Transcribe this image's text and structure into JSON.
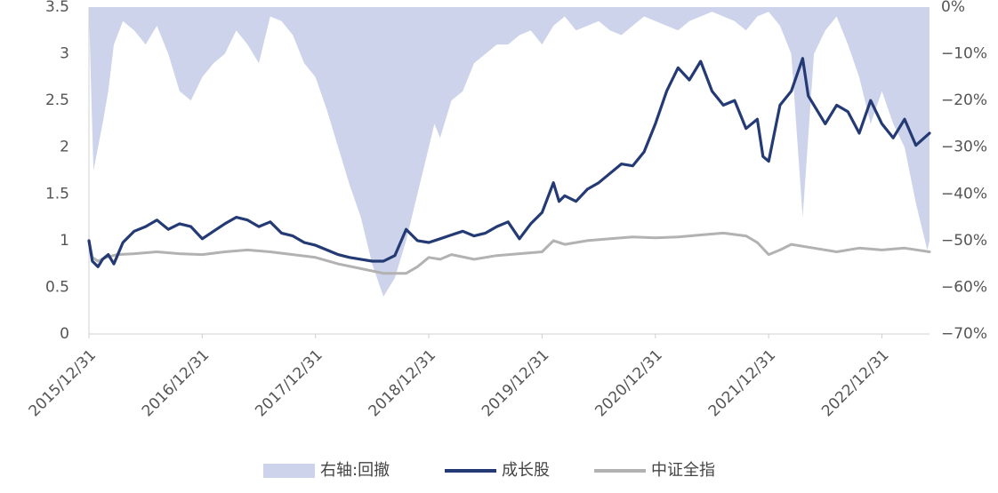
{
  "chart_data": {
    "type": "line",
    "title": "",
    "left_axis": {
      "ylim": [
        0,
        3.5
      ],
      "tick_labels": [
        "0",
        "0.5",
        "1",
        "1.5",
        "2",
        "2.5",
        "3",
        "3.5"
      ]
    },
    "right_axis": {
      "ylim": [
        -70,
        0
      ],
      "tick_labels": [
        "-70%",
        "-60%",
        "-50%",
        "-40%",
        "-30%",
        "-20%",
        "-10%",
        "0%"
      ]
    },
    "x_tick_labels": [
      "2015/12/31",
      "2016/12/31",
      "2017/12/31",
      "2018/12/31",
      "2019/12/31",
      "2020/12/31",
      "2021/12/31",
      "2022/12/31"
    ],
    "legend": [
      "右轴:回撤",
      "成长股",
      "中证全指"
    ],
    "colors": {
      "drawdown": "#ccd3ea",
      "growth": "#243a74",
      "index": "#b2b2b2"
    },
    "series": [
      {
        "name": "右轴:回撤",
        "axis": "right",
        "type": "area",
        "x": [
          2016.0,
          2016.02,
          2016.04,
          2016.08,
          2016.12,
          2016.17,
          2016.22,
          2016.3,
          2016.4,
          2016.5,
          2016.6,
          2016.7,
          2016.8,
          2016.9,
          2017.0,
          2017.1,
          2017.2,
          2017.3,
          2017.4,
          2017.5,
          2017.6,
          2017.7,
          2017.8,
          2017.9,
          2018.0,
          2018.1,
          2018.2,
          2018.3,
          2018.4,
          2018.5,
          2018.6,
          2018.7,
          2018.8,
          2018.9,
          2018.95,
          2019.0,
          2019.05,
          2019.1,
          2019.2,
          2019.3,
          2019.4,
          2019.5,
          2019.6,
          2019.7,
          2019.8,
          2019.9,
          2020.0,
          2020.1,
          2020.2,
          2020.3,
          2020.4,
          2020.5,
          2020.6,
          2020.7,
          2020.8,
          2020.9,
          2021.0,
          2021.1,
          2021.2,
          2021.3,
          2021.4,
          2021.5,
          2021.6,
          2021.7,
          2021.8,
          2021.9,
          2022.0,
          2022.1,
          2022.2,
          2022.3,
          2022.4,
          2022.5,
          2022.6,
          2022.7,
          2022.8,
          2022.9,
          2023.0,
          2023.1,
          2023.2,
          2023.3,
          2023.4,
          2023.42
        ],
        "values": [
          0,
          -18,
          -35,
          -30,
          -25,
          -18,
          -8,
          -3,
          -5,
          -8,
          -4,
          -10,
          -18,
          -20,
          -15,
          -12,
          -10,
          -5,
          -8,
          -12,
          -2,
          -3,
          -6,
          -12,
          -15,
          -22,
          -30,
          -38,
          -45,
          -55,
          -62,
          -58,
          -50,
          -40,
          -35,
          -30,
          -25,
          -28,
          -20,
          -18,
          -12,
          -10,
          -8,
          -8,
          -6,
          -5,
          -8,
          -4,
          -2,
          -5,
          -4,
          -3,
          -5,
          -6,
          -4,
          -2,
          -3,
          -4,
          -5,
          -3,
          -2,
          -1,
          -2,
          -3,
          -5,
          -2,
          -1,
          -4,
          -10,
          -45,
          -10,
          -5,
          -2,
          -8,
          -15,
          -25,
          -18,
          -25,
          -30,
          -42,
          -52,
          -50
        ]
      },
      {
        "name": "成长股",
        "axis": "left",
        "x": [
          2016.0,
          2016.03,
          2016.08,
          2016.12,
          2016.17,
          2016.22,
          2016.3,
          2016.4,
          2016.5,
          2016.6,
          2016.7,
          2016.8,
          2016.9,
          2017.0,
          2017.1,
          2017.2,
          2017.3,
          2017.4,
          2017.5,
          2017.6,
          2017.7,
          2017.8,
          2017.9,
          2018.0,
          2018.1,
          2018.2,
          2018.3,
          2018.4,
          2018.5,
          2018.6,
          2018.7,
          2018.8,
          2018.9,
          2019.0,
          2019.1,
          2019.2,
          2019.3,
          2019.4,
          2019.5,
          2019.6,
          2019.7,
          2019.8,
          2019.9,
          2020.0,
          2020.1,
          2020.15,
          2020.2,
          2020.3,
          2020.4,
          2020.5,
          2020.6,
          2020.7,
          2020.8,
          2020.9,
          2021.0,
          2021.1,
          2021.2,
          2021.3,
          2021.4,
          2021.5,
          2021.6,
          2021.7,
          2021.8,
          2021.9,
          2021.95,
          2022.0,
          2022.1,
          2022.2,
          2022.3,
          2022.35,
          2022.4,
          2022.5,
          2022.6,
          2022.7,
          2022.8,
          2022.9,
          2023.0,
          2023.1,
          2023.2,
          2023.3,
          2023.42
        ],
        "values": [
          1.0,
          0.78,
          0.72,
          0.8,
          0.85,
          0.75,
          0.98,
          1.1,
          1.15,
          1.22,
          1.12,
          1.18,
          1.15,
          1.02,
          1.1,
          1.18,
          1.25,
          1.22,
          1.15,
          1.2,
          1.08,
          1.05,
          0.98,
          0.95,
          0.9,
          0.85,
          0.82,
          0.8,
          0.78,
          0.78,
          0.84,
          1.12,
          1.0,
          0.98,
          1.02,
          1.06,
          1.1,
          1.05,
          1.08,
          1.15,
          1.2,
          1.02,
          1.18,
          1.3,
          1.62,
          1.42,
          1.48,
          1.42,
          1.55,
          1.62,
          1.72,
          1.82,
          1.8,
          1.95,
          2.25,
          2.6,
          2.85,
          2.72,
          2.92,
          2.6,
          2.45,
          2.5,
          2.2,
          2.3,
          1.9,
          1.85,
          2.45,
          2.6,
          2.95,
          2.55,
          2.45,
          2.25,
          2.45,
          2.38,
          2.15,
          2.5,
          2.25,
          2.1,
          2.3,
          2.02,
          2.15
        ]
      },
      {
        "name": "中证全指",
        "axis": "left",
        "x": [
          2016.0,
          2016.03,
          2016.08,
          2016.15,
          2016.25,
          2016.4,
          2016.6,
          2016.8,
          2017.0,
          2017.2,
          2017.4,
          2017.6,
          2017.8,
          2018.0,
          2018.2,
          2018.4,
          2018.6,
          2018.8,
          2018.9,
          2019.0,
          2019.1,
          2019.2,
          2019.4,
          2019.6,
          2019.8,
          2020.0,
          2020.1,
          2020.2,
          2020.4,
          2020.6,
          2020.8,
          2021.0,
          2021.2,
          2021.4,
          2021.6,
          2021.8,
          2021.9,
          2022.0,
          2022.1,
          2022.2,
          2022.4,
          2022.6,
          2022.8,
          2023.0,
          2023.2,
          2023.42
        ],
        "values": [
          1.0,
          0.82,
          0.78,
          0.82,
          0.85,
          0.86,
          0.88,
          0.86,
          0.85,
          0.88,
          0.9,
          0.88,
          0.85,
          0.82,
          0.75,
          0.7,
          0.65,
          0.65,
          0.72,
          0.82,
          0.8,
          0.85,
          0.8,
          0.84,
          0.86,
          0.88,
          1.0,
          0.96,
          1.0,
          1.02,
          1.04,
          1.03,
          1.04,
          1.06,
          1.08,
          1.05,
          0.98,
          0.85,
          0.9,
          0.96,
          0.92,
          0.88,
          0.92,
          0.9,
          0.92,
          0.88
        ]
      }
    ]
  }
}
